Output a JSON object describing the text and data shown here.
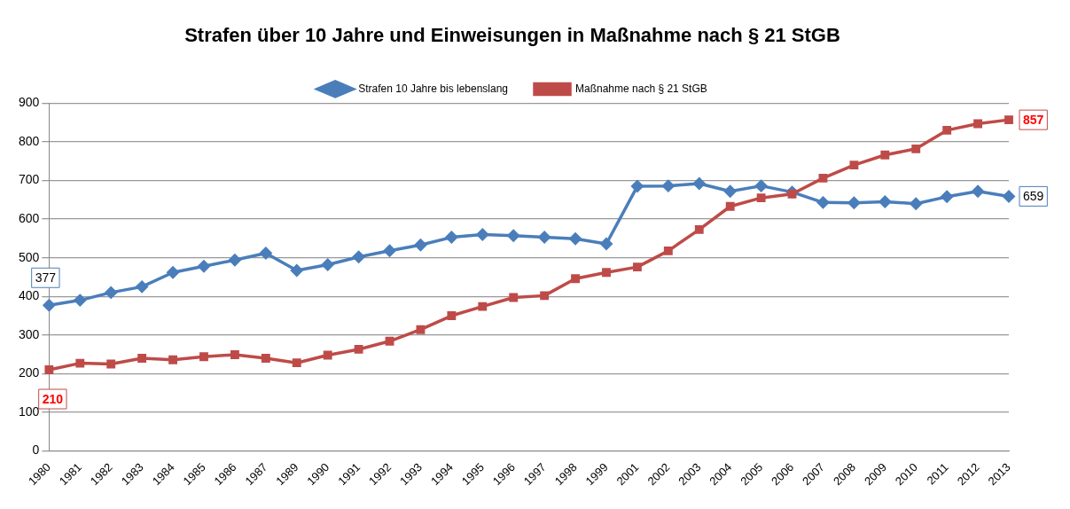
{
  "chart_data": {
    "type": "line",
    "title": "Strafen über 10 Jahre und Einweisungen in Maßnahme nach § 21 StGB",
    "categories": [
      "1980",
      "1981",
      "1982",
      "1983",
      "1984",
      "1985",
      "1986",
      "1987",
      "1989",
      "1990",
      "1991",
      "1992",
      "1993",
      "1994",
      "1995",
      "1996",
      "1997",
      "1998",
      "1999",
      "2001",
      "2002",
      "2003",
      "2004",
      "2005",
      "2006",
      "2007",
      "2008",
      "2009",
      "2010",
      "2011",
      "2012",
      "2013"
    ],
    "series": [
      {
        "name": "Strafen 10 Jahre bis lebenslang",
        "color": "#4a7ebb",
        "marker": "diamond",
        "values": [
          377,
          390,
          410,
          425,
          462,
          478,
          494,
          512,
          467,
          482,
          502,
          518,
          533,
          553,
          560,
          557,
          553,
          549,
          536,
          685,
          686,
          692,
          672,
          686,
          670,
          643,
          642,
          645,
          640,
          658,
          672,
          659
        ],
        "value_labels": [
          "377",
          null,
          null,
          null,
          null,
          null,
          null,
          null,
          null,
          null,
          null,
          null,
          null,
          null,
          null,
          null,
          null,
          null,
          null,
          null,
          null,
          null,
          null,
          null,
          null,
          null,
          null,
          null,
          null,
          null,
          null,
          "659"
        ]
      },
      {
        "name": "Maßnahme nach § 21 StGB",
        "color": "#be4b48",
        "marker": "square",
        "values": [
          210,
          227,
          225,
          240,
          236,
          244,
          249,
          240,
          228,
          248,
          263,
          284,
          314,
          350,
          374,
          397,
          402,
          446,
          462,
          476,
          518,
          573,
          633,
          655,
          665,
          706,
          740,
          766,
          782,
          830,
          847,
          857
        ],
        "value_labels": [
          "210",
          null,
          null,
          null,
          null,
          null,
          null,
          null,
          null,
          null,
          null,
          null,
          null,
          null,
          null,
          null,
          null,
          null,
          null,
          null,
          null,
          null,
          null,
          null,
          null,
          null,
          null,
          null,
          null,
          null,
          null,
          "857"
        ]
      }
    ],
    "ylim": [
      0,
      900
    ],
    "yticks": [
      0,
      100,
      200,
      300,
      400,
      500,
      600,
      700,
      800,
      900
    ],
    "grid": "y",
    "legend": "top",
    "line_style": "solid"
  }
}
